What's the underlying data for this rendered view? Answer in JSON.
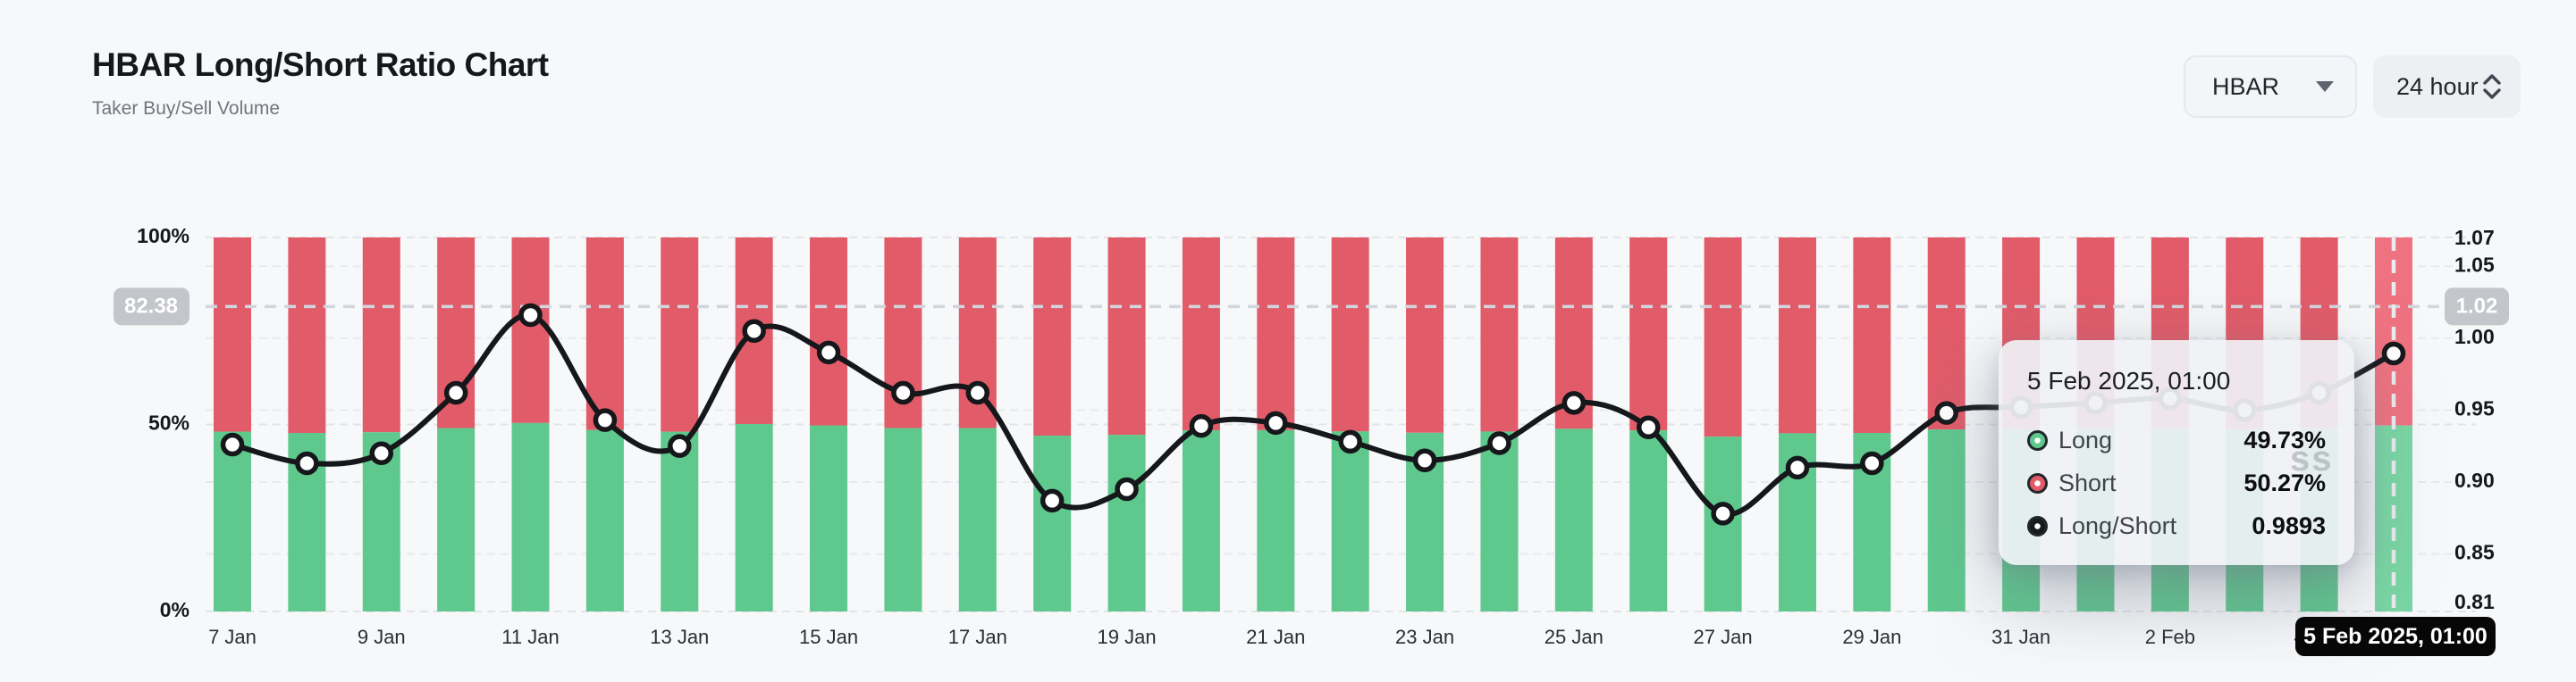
{
  "header": {
    "title": "HBAR Long/Short Ratio Chart",
    "subtitle": "Taker Buy/Sell Volume"
  },
  "controls": {
    "symbol_select": {
      "value": "HBAR"
    },
    "interval_select": {
      "value": "24 hour"
    }
  },
  "chart_data": {
    "type": "bar",
    "subtype": "stacked-percent-bars-with-ratio-line",
    "categories": [
      "7 Jan",
      "8 Jan",
      "9 Jan",
      "10 Jan",
      "11 Jan",
      "12 Jan",
      "13 Jan",
      "14 Jan",
      "15 Jan",
      "16 Jan",
      "17 Jan",
      "18 Jan",
      "19 Jan",
      "20 Jan",
      "21 Jan",
      "22 Jan",
      "23 Jan",
      "24 Jan",
      "25 Jan",
      "26 Jan",
      "27 Jan",
      "28 Jan",
      "29 Jan",
      "30 Jan",
      "31 Jan",
      "1 Feb",
      "2 Feb",
      "3 Feb",
      "4 Feb",
      "5 Feb"
    ],
    "series": [
      {
        "name": "Long/Short",
        "type": "line",
        "values": [
          0.926,
          0.913,
          0.92,
          0.962,
          1.016,
          0.943,
          0.925,
          1.005,
          0.99,
          0.962,
          0.962,
          0.887,
          0.895,
          0.939,
          0.941,
          0.928,
          0.915,
          0.927,
          0.955,
          0.938,
          0.878,
          0.91,
          0.913,
          0.948,
          0.952,
          0.955,
          0.958,
          0.95,
          0.962,
          0.9893
        ]
      },
      {
        "name": "Long",
        "type": "bar-bottom",
        "note": "percent = ratio/(1+ratio)*100"
      },
      {
        "name": "Short",
        "type": "bar-top",
        "note": "percent = 100 - Long"
      }
    ],
    "x_tick_labels": [
      "7 Jan",
      "9 Jan",
      "11 Jan",
      "13 Jan",
      "15 Jan",
      "17 Jan",
      "19 Jan",
      "21 Jan",
      "23 Jan",
      "25 Jan",
      "27 Jan",
      "29 Jan",
      "31 Jan",
      "2 Feb",
      "4 Feb"
    ],
    "left_axis": {
      "ticks": [
        {
          "label": "100%",
          "pct": 100
        },
        {
          "label": "50%",
          "pct": 50
        },
        {
          "label": "0%",
          "pct": 0
        }
      ]
    },
    "right_axis": {
      "min": 0.81,
      "max": 1.07,
      "ticks": [
        1.07,
        1.05,
        1.0,
        0.95,
        0.9,
        0.85,
        0.81
      ]
    },
    "crosshair": {
      "index": 29,
      "y_ratio": 1.022,
      "left_badge": "82.38",
      "right_badge": "1.02"
    },
    "highlight_index": 29,
    "legend_position": "tooltip",
    "grid": true,
    "colors": {
      "long": "#5ec88d",
      "short": "#e25b69",
      "long_faded": "#79d6a3",
      "short_faded": "#ef7280",
      "line": "#15171a",
      "dot_fill": "#ffffff",
      "grid": "#e7e9ed",
      "crosshair": "#d2d6dc",
      "badge_bg": "#c3c6cb",
      "axis_text": "#15181d",
      "x_text": "#2a2e34"
    }
  },
  "tooltip": {
    "title": "5 Feb 2025, 01:00",
    "rows": [
      {
        "label": "Long",
        "value": "49.73%",
        "color": "#5ec88d"
      },
      {
        "label": "Short",
        "value": "50.27%",
        "color": "#e25b69"
      },
      {
        "label": "Long/Short",
        "value": "0.9893",
        "color": "#17191c"
      }
    ]
  },
  "axis_tooltip": {
    "text": "5 Feb 2025, 01:00"
  },
  "watermark": {
    "text": "ss"
  }
}
